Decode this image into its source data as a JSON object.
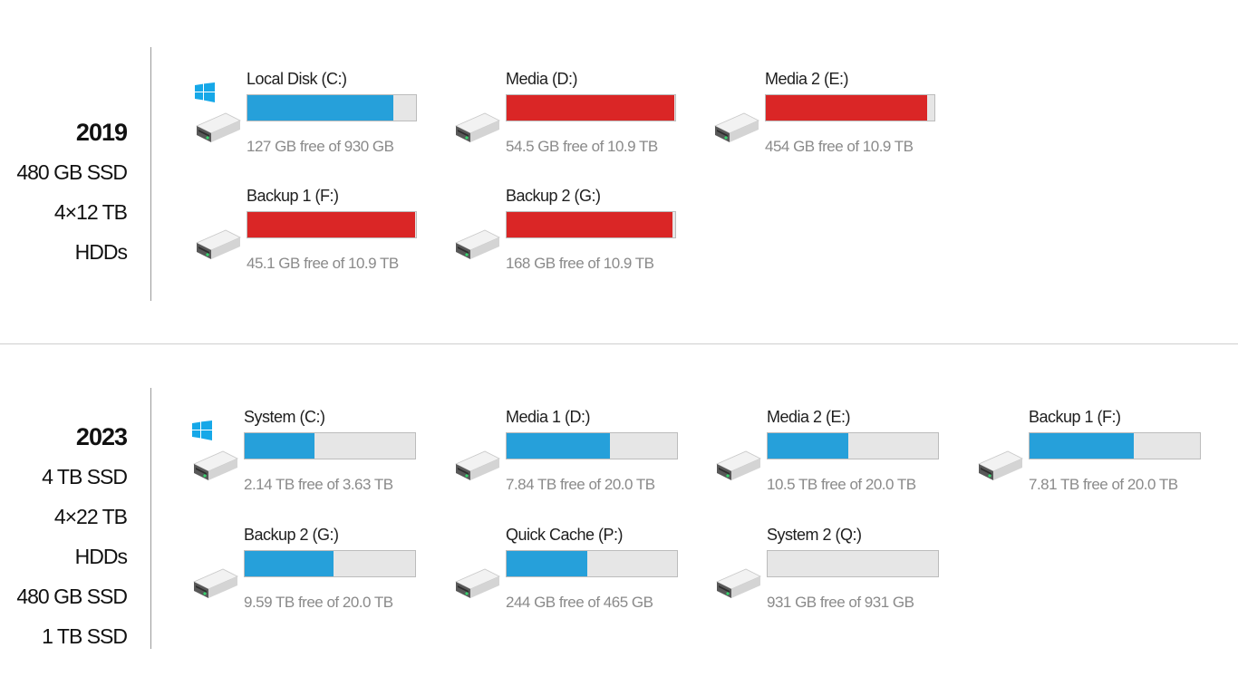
{
  "colors": {
    "normal_fill": "#26a0da",
    "full_fill": "#da2626",
    "bar_bg": "#e6e6e6"
  },
  "sections": [
    {
      "year": "2019",
      "specs": [
        "480 GB SSD",
        "4×12 TB HDDs"
      ],
      "drives": [
        {
          "name": "Local Disk (C:)",
          "free_text": "127 GB free of 930 GB",
          "used_fraction": 0.863,
          "status": "normal",
          "icon": "windows-drive-icon"
        },
        {
          "name": "Media (D:)",
          "free_text": "54.5 GB free of 10.9 TB",
          "used_fraction": 0.995,
          "status": "full",
          "icon": "hard-drive-icon"
        },
        {
          "name": "Media 2 (E:)",
          "free_text": "454 GB free of 10.9 TB",
          "used_fraction": 0.958,
          "status": "full",
          "icon": "hard-drive-icon"
        },
        {
          "name": "Backup 1 (F:)",
          "free_text": "45.1 GB free of 10.9 TB",
          "used_fraction": 0.996,
          "status": "full",
          "icon": "hard-drive-icon"
        },
        {
          "name": "Backup 2 (G:)",
          "free_text": "168 GB free of 10.9 TB",
          "used_fraction": 0.985,
          "status": "full",
          "icon": "hard-drive-icon"
        }
      ]
    },
    {
      "year": "2023",
      "specs": [
        "4 TB SSD",
        "4×22 TB HDDs",
        "480 GB SSD",
        "1 TB SSD"
      ],
      "drives": [
        {
          "name": "System (C:)",
          "free_text": "2.14 TB free of 3.63 TB",
          "used_fraction": 0.41,
          "status": "normal",
          "icon": "windows-drive-icon"
        },
        {
          "name": "Media 1 (D:)",
          "free_text": "7.84 TB free of 20.0 TB",
          "used_fraction": 0.608,
          "status": "normal",
          "icon": "hard-drive-icon"
        },
        {
          "name": "Media 2 (E:)",
          "free_text": "10.5 TB free of 20.0 TB",
          "used_fraction": 0.475,
          "status": "normal",
          "icon": "hard-drive-icon"
        },
        {
          "name": "Backup 1 (F:)",
          "free_text": "7.81 TB free of 20.0 TB",
          "used_fraction": 0.61,
          "status": "normal",
          "icon": "hard-drive-icon"
        },
        {
          "name": "Backup 2 (G:)",
          "free_text": "9.59 TB free of 20.0 TB",
          "used_fraction": 0.52,
          "status": "normal",
          "icon": "hard-drive-icon"
        },
        {
          "name": "Quick Cache (P:)",
          "free_text": "244 GB free of 465 GB",
          "used_fraction": 0.475,
          "status": "normal",
          "icon": "hard-drive-icon"
        },
        {
          "name": "System 2 (Q:)",
          "free_text": "931 GB free of 931 GB",
          "used_fraction": 0.0,
          "status": "normal",
          "icon": "hard-drive-icon"
        }
      ]
    }
  ]
}
